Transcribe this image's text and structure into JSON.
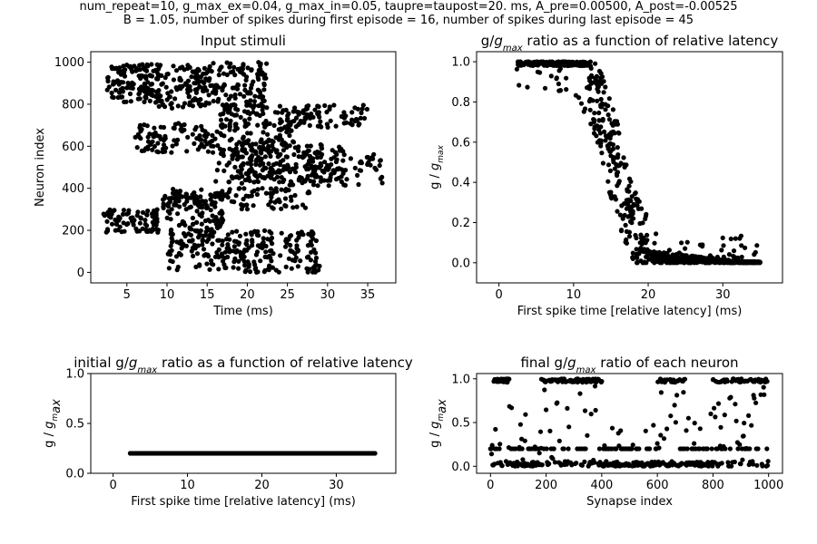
{
  "suptitle": {
    "line1": "num_repeat=10, g_max_ex=0.04, g_max_in=0.05, taupre=taupost=20. ms, A_pre=0.00500, A_post=-0.00525",
    "line2": "B = 1.05, number of spikes during first episode = 16, number of spikes during last episode = 45"
  },
  "chart_data": [
    {
      "id": "input-stimuli",
      "type": "scatter",
      "title": "Input stimuli",
      "xlabel": "Time (ms)",
      "ylabel": "Neuron index",
      "xlim": [
        0.5,
        38.5
      ],
      "ylim": [
        -50,
        1050
      ],
      "xticks": [
        5,
        10,
        15,
        20,
        25,
        30,
        35
      ],
      "yticks": [
        0,
        200,
        400,
        600,
        800,
        1000
      ],
      "grid": false,
      "marker_color": "#000000",
      "clusters": [
        {
          "t": [
            2.5,
            9.5
          ],
          "n": [
            810,
            990
          ],
          "count": 130
        },
        {
          "t": [
            8.5,
            15.0
          ],
          "n": [
            780,
            990
          ],
          "count": 80
        },
        {
          "t": [
            12.5,
            22.5
          ],
          "n": [
            790,
            1000
          ],
          "count": 150
        },
        {
          "t": [
            16.5,
            35.0
          ],
          "n": [
            690,
            800
          ],
          "count": 140
        },
        {
          "t": [
            6.0,
            26.0
          ],
          "n": [
            570,
            710
          ],
          "count": 190
        },
        {
          "t": [
            16.0,
            32.0
          ],
          "n": [
            430,
            610
          ],
          "count": 160
        },
        {
          "t": [
            19.0,
            37.0
          ],
          "n": [
            410,
            570
          ],
          "count": 130
        },
        {
          "t": [
            9.5,
            28.0
          ],
          "n": [
            300,
            400
          ],
          "count": 110
        },
        {
          "t": [
            2.0,
            9.0
          ],
          "n": [
            190,
            300
          ],
          "count": 80
        },
        {
          "t": [
            9.5,
            17.0
          ],
          "n": [
            180,
            380
          ],
          "count": 90
        },
        {
          "t": [
            10.0,
            29.0
          ],
          "n": [
            0,
            200
          ],
          "count": 250
        }
      ]
    },
    {
      "id": "final-ratio-vs-latency",
      "type": "scatter",
      "title": "g/g_max ratio as a function of relative latency",
      "title_parts": [
        "g/",
        "g",
        "max",
        " ratio as a function of relative latency"
      ],
      "xlabel": "First spike time [relative latency] (ms)",
      "ylabel_parts": [
        "g / ",
        "g",
        "max"
      ],
      "xlim": [
        -3,
        38
      ],
      "ylim": [
        -0.1,
        1.05
      ],
      "xticks": [
        0,
        10,
        20,
        30
      ],
      "yticks": [
        0.0,
        0.2,
        0.4,
        0.6,
        0.8,
        1.0
      ],
      "grid": false,
      "marker_color": "#000000",
      "x_range": [
        2.3,
        35.0
      ],
      "sigmoid": {
        "midpoint": 15.5,
        "width": 1.8
      },
      "count": 1000
    },
    {
      "id": "initial-ratio-vs-latency",
      "type": "scatter",
      "title": "initial g/g_max ratio as a function of relative latency",
      "title_parts": [
        "initial g/",
        "g",
        "max",
        " ratio as a function of relative latency"
      ],
      "xlabel": "First spike time [relative latency] (ms)",
      "ylabel_parts": [
        "g / ",
        "g",
        "m",
        "ax"
      ],
      "xlim": [
        -3,
        38
      ],
      "ylim": [
        0.0,
        1.0
      ],
      "xticks": [
        0,
        10,
        20,
        30
      ],
      "yticks": [
        0.0,
        0.5,
        1.0
      ],
      "grid": false,
      "marker_color": "#000000",
      "x_range": [
        2.3,
        35.2
      ],
      "y_value": 0.2,
      "count": 1000
    },
    {
      "id": "final-ratio-per-neuron",
      "type": "scatter",
      "title": "final g/g_max ratio of each neuron",
      "title_parts": [
        "final g/",
        "g",
        "max",
        " ratio of each neuron"
      ],
      "xlabel": "Synapse index",
      "ylabel_parts": [
        "g / ",
        "g",
        "m",
        "ax"
      ],
      "xlim": [
        -50,
        1050
      ],
      "ylim": [
        -0.08,
        1.06
      ],
      "xticks": [
        0,
        200,
        400,
        600,
        800,
        1000
      ],
      "yticks": [
        0.0,
        0.5,
        1.0
      ],
      "grid": false,
      "marker_color": "#000000",
      "count": 1000,
      "high_ranges": [
        [
          0,
          80
        ],
        [
          180,
          400
        ],
        [
          600,
          700
        ],
        [
          800,
          1000
        ]
      ],
      "baseline_level": 0.2
    }
  ]
}
